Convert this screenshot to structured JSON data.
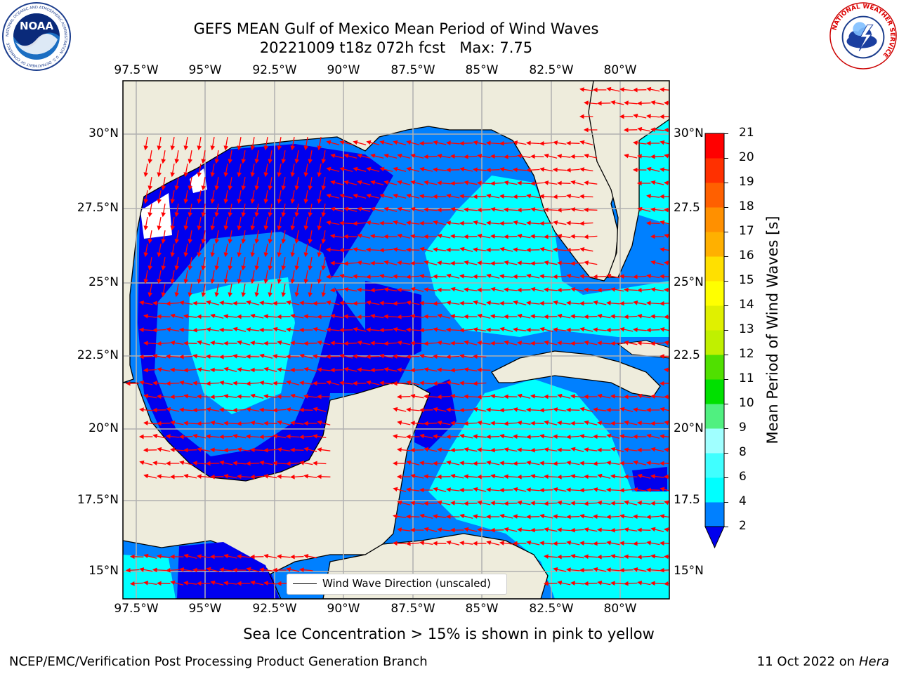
{
  "title": {
    "line1": "GEFS MEAN Gulf of Mexico Mean Period of Wind Waves",
    "line2": "20221009 t18z 072h fcst   Max: 7.75"
  },
  "map": {
    "lon_labels": [
      "97.5°W",
      "95°W",
      "92.5°W",
      "90°W",
      "87.5°W",
      "85°W",
      "82.5°W",
      "80°W"
    ],
    "lat_labels": [
      "30°N",
      "27.5°N",
      "25°N",
      "22.5°N",
      "20°N",
      "17.5°N",
      "15°N"
    ],
    "right_lat_labels": [
      "30°N",
      "27.5",
      "25°N",
      "22.5",
      "20°N",
      "17.5",
      "15°N"
    ],
    "legend_label": "Wind Wave Direction (unscaled)",
    "colors": {
      "land": "#eeecdc",
      "arrows": "#ff0000",
      "grid": "#b0b0b0"
    }
  },
  "colorbar": {
    "label": "Mean Period of Wind Waves [s]",
    "ticks": [
      "2",
      "4",
      "6",
      "8",
      "9",
      "10",
      "11",
      "12",
      "13",
      "14",
      "15",
      "16",
      "17",
      "18",
      "19",
      "20",
      "21"
    ],
    "colors": [
      "#0000ee",
      "#0080ff",
      "#00ffff",
      "#40ffff",
      "#a0ffff",
      "#50f080",
      "#00e000",
      "#50e000",
      "#c0f000",
      "#e0f000",
      "#ffff00",
      "#ffe000",
      "#ffb000",
      "#ff9000",
      "#ff6000",
      "#ff3000",
      "#ff0000"
    ]
  },
  "note": "Sea Ice Concentration > 15% is shown in pink to yellow",
  "footer": {
    "left": "NCEP/EMC/Verification Post Processing Product Generation Branch",
    "date": "11 Oct 2022 on",
    "machine": "Hera"
  },
  "logos": {
    "noaa": "NOAA",
    "noaa_ring": "NATIONAL OCEANIC AND ATMOSPHERIC ADMINISTRATION · U.S. DEPARTMENT OF COMMERCE",
    "nws_ring": "NATIONAL WEATHER SERVICE"
  }
}
